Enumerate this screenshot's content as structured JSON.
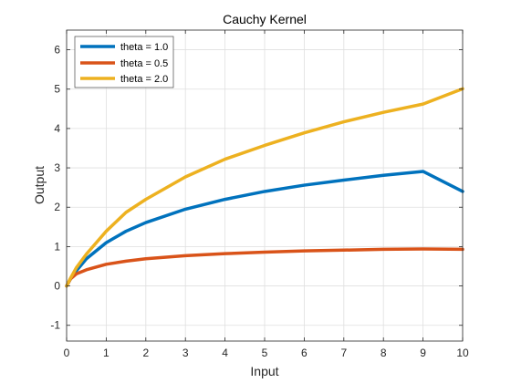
{
  "chart_data": {
    "type": "line",
    "title": "Cauchy Kernel",
    "xlabel": "Input",
    "ylabel": "Output",
    "xlim": [
      0,
      10
    ],
    "ylim": [
      -1.4,
      6.5
    ],
    "xticks": [
      0,
      1,
      2,
      3,
      4,
      5,
      6,
      7,
      8,
      9,
      10
    ],
    "yticks": [
      -1,
      0,
      1,
      2,
      3,
      4,
      5,
      6
    ],
    "grid": true,
    "legend_position": "top-left",
    "x": [
      0,
      0.1,
      0.25,
      0.5,
      1,
      1.5,
      2,
      3,
      4,
      5,
      6,
      7,
      8,
      9,
      10
    ],
    "series": [
      {
        "name": "theta = 1.0",
        "color": "#0072BD",
        "values": [
          0,
          0.18,
          0.39,
          0.69,
          1.1,
          1.39,
          1.61,
          1.95,
          2.2,
          2.4,
          2.56,
          2.69,
          2.81,
          2.91,
          2.4
        ]
      },
      {
        "name": "theta = 0.5",
        "color": "#D95319",
        "values": [
          0,
          0.18,
          0.31,
          0.41,
          0.55,
          0.63,
          0.69,
          0.77,
          0.82,
          0.86,
          0.89,
          0.91,
          0.93,
          0.94,
          0.93
        ]
      },
      {
        "name": "theta = 2.0",
        "color": "#EDB120",
        "values": [
          0,
          0.2,
          0.47,
          0.81,
          1.39,
          1.87,
          2.2,
          2.77,
          3.22,
          3.57,
          3.89,
          4.17,
          4.41,
          4.62,
          5.01
        ]
      }
    ]
  }
}
